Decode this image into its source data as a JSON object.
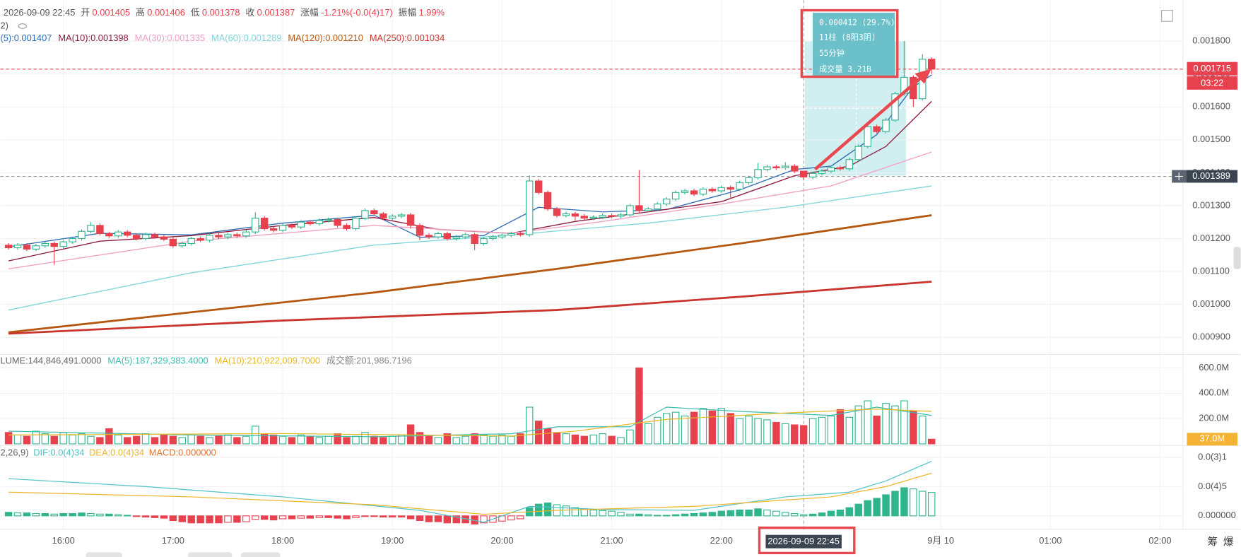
{
  "header": {
    "date": "2026-09-09 22:45",
    "items": [
      {
        "label": "开",
        "value": "0.001405"
      },
      {
        "label": "高",
        "value": "0.001406"
      },
      {
        "label": "低",
        "value": "0.001378"
      },
      {
        "label": "收",
        "value": "0.001387"
      },
      {
        "label": "涨幅",
        "value": "-1.21%(-0.0(4)17)"
      },
      {
        "label": "振幅",
        "value": "1.99%"
      }
    ],
    "line2": "2)"
  },
  "tooltip": [
    "0.000412 (29.7%)",
    "11柱 (8阳3阴)",
    "55分钟",
    "成交量 3.21B"
  ],
  "side_buttons": [
    "筹",
    "爆"
  ],
  "chart_data": {
    "type": "candlestick",
    "up_color": "#2fb58c",
    "down_color": "#e8414e",
    "grid": true,
    "xlim": [
      -0.9,
      128.5
    ],
    "xticks": [
      {
        "value": 6,
        "label": "16:00"
      },
      {
        "value": 18,
        "label": "17:00"
      },
      {
        "value": 30,
        "label": "18:00"
      },
      {
        "value": 42,
        "label": "19:00"
      },
      {
        "value": 54,
        "label": "20:00"
      },
      {
        "value": 66,
        "label": "21:00"
      },
      {
        "value": 78,
        "label": "22:00"
      },
      {
        "value": 102,
        "label": "9月 10"
      },
      {
        "value": 114,
        "label": "01:00"
      },
      {
        "value": 126,
        "label": "02:00"
      }
    ],
    "ylim": [
      0.000855,
      0.001925
    ],
    "yticks": [
      {
        "value": 0.0018,
        "label": "0.001800"
      },
      {
        "value": 0.0017,
        "label": "0.001700"
      },
      {
        "value": 0.0016,
        "label": "0.001600"
      },
      {
        "value": 0.0015,
        "label": "0.001500"
      },
      {
        "value": 0.0014,
        "label": "0.001400"
      },
      {
        "value": 0.0013,
        "label": "0.001300"
      },
      {
        "value": 0.0012,
        "label": "0.001200"
      },
      {
        "value": 0.0011,
        "label": "0.001100"
      },
      {
        "value": 0.001,
        "label": "0.001000"
      },
      {
        "value": 0.0009,
        "label": "0.000900"
      }
    ],
    "open": [
      0.00118,
      0.001172,
      0.00118,
      0.001168,
      0.001178,
      0.001185,
      0.001176,
      0.00119,
      0.0012,
      0.001222,
      0.00124,
      0.001215,
      0.001208,
      0.00122,
      0.00121,
      0.0012,
      0.001212,
      0.001205,
      0.001198,
      0.001178,
      0.001185,
      0.0012,
      0.001195,
      0.00121,
      0.001205,
      0.001212,
      0.001208,
      0.00122,
      0.001262,
      0.00123,
      0.001225,
      0.00124,
      0.001235,
      0.00125,
      0.001245,
      0.001255,
      0.001258,
      0.00124,
      0.00123,
      0.001262,
      0.001285,
      0.001275,
      0.001262,
      0.001268,
      0.001272,
      0.00124,
      0.00121,
      0.001205,
      0.001215,
      0.0012,
      0.001205,
      0.001212,
      0.001185,
      0.0012,
      0.001205,
      0.00121,
      0.001215,
      0.001212,
      0.001375,
      0.00134,
      0.00129,
      0.00127,
      0.001275,
      0.001268,
      0.001262,
      0.001265,
      0.00127,
      0.001268,
      0.001272,
      0.0013,
      0.001285,
      0.00129,
      0.001305,
      0.00132,
      0.00134,
      0.001345,
      0.001335,
      0.00135,
      0.001345,
      0.001355,
      0.00135,
      0.00137,
      0.001385,
      0.00141,
      0.001418,
      0.001415,
      0.00142,
      0.001405,
      0.001387,
      0.001398,
      0.001405,
      0.001415,
      0.001412,
      0.00144,
      0.00148,
      0.00154,
      0.001525,
      0.00156,
      0.00164,
      0.00169,
      0.001625,
      0.001745
    ],
    "high": [
      0.001186,
      0.001186,
      0.001186,
      0.001184,
      0.001191,
      0.001191,
      0.001196,
      0.001206,
      0.001228,
      0.00125,
      0.001246,
      0.001221,
      0.001226,
      0.001226,
      0.001216,
      0.001218,
      0.001218,
      0.001211,
      0.001204,
      0.001191,
      0.001206,
      0.001206,
      0.001216,
      0.001216,
      0.001218,
      0.001218,
      0.001226,
      0.00128,
      0.001268,
      0.001236,
      0.001246,
      0.001246,
      0.001256,
      0.001256,
      0.001261,
      0.001264,
      0.001264,
      0.001246,
      0.001268,
      0.001291,
      0.001291,
      0.001281,
      0.001274,
      0.001278,
      0.001278,
      0.001246,
      0.001216,
      0.001221,
      0.001221,
      0.001211,
      0.001218,
      0.001218,
      0.001206,
      0.001211,
      0.001216,
      0.001221,
      0.001221,
      0.001392,
      0.001381,
      0.001346,
      0.001296,
      0.001281,
      0.001281,
      0.001274,
      0.001271,
      0.001276,
      0.001276,
      0.001278,
      0.001306,
      0.001408,
      0.001296,
      0.001311,
      0.001326,
      0.001346,
      0.001351,
      0.001351,
      0.001356,
      0.001356,
      0.001361,
      0.001361,
      0.001376,
      0.001391,
      0.00143,
      0.001424,
      0.001424,
      0.001432,
      0.001426,
      0.001406,
      0.001404,
      0.001411,
      0.001421,
      0.001421,
      0.001446,
      0.001486,
      0.001546,
      0.001546,
      0.001566,
      0.001646,
      0.0018,
      0.001696,
      0.00176,
      0.001751
    ],
    "low": [
      0.001166,
      0.001166,
      0.001162,
      0.001162,
      0.001172,
      0.00112,
      0.00117,
      0.001184,
      0.001194,
      0.001216,
      0.001209,
      0.001202,
      0.001202,
      0.001204,
      0.001194,
      0.001194,
      0.001199,
      0.001192,
      0.001172,
      0.001172,
      0.001179,
      0.001189,
      0.001189,
      0.001199,
      0.001199,
      0.001202,
      0.001202,
      0.001214,
      0.001224,
      0.001219,
      0.001219,
      0.001229,
      0.001229,
      0.001239,
      0.001239,
      0.001249,
      0.001234,
      0.001224,
      0.001224,
      0.001256,
      0.001269,
      0.001256,
      0.001256,
      0.001262,
      0.00123,
      0.001195,
      0.001199,
      0.001199,
      0.001194,
      0.001194,
      0.001199,
      0.001165,
      0.001179,
      0.001194,
      0.001199,
      0.001204,
      0.001206,
      0.001206,
      0.001334,
      0.001284,
      0.001264,
      0.001264,
      0.001255,
      0.001256,
      0.001256,
      0.001259,
      0.001262,
      0.001262,
      0.001266,
      0.001279,
      0.001279,
      0.001284,
      0.001299,
      0.001314,
      0.001334,
      0.001329,
      0.001329,
      0.001339,
      0.001339,
      0.00132,
      0.001344,
      0.001364,
      0.001379,
      0.001404,
      0.001409,
      0.001409,
      0.001399,
      0.001378,
      0.001381,
      0.001392,
      0.001399,
      0.001406,
      0.001406,
      0.001434,
      0.001474,
      0.001519,
      0.001519,
      0.001554,
      0.001634,
      0.0016,
      0.001619,
      0.0017
    ],
    "close": [
      0.001172,
      0.00118,
      0.001168,
      0.001178,
      0.001185,
      0.001176,
      0.00119,
      0.0012,
      0.001222,
      0.00124,
      0.001215,
      0.001208,
      0.00122,
      0.00121,
      0.0012,
      0.001212,
      0.001205,
      0.001198,
      0.001178,
      0.001185,
      0.0012,
      0.001195,
      0.00121,
      0.001205,
      0.001212,
      0.001208,
      0.00122,
      0.001262,
      0.00123,
      0.001225,
      0.00124,
      0.001235,
      0.00125,
      0.001245,
      0.001255,
      0.001258,
      0.00124,
      0.00123,
      0.001262,
      0.001285,
      0.001275,
      0.001262,
      0.001268,
      0.001272,
      0.00124,
      0.00121,
      0.001205,
      0.001215,
      0.0012,
      0.001205,
      0.001212,
      0.001185,
      0.0012,
      0.001205,
      0.00121,
      0.001215,
      0.001212,
      0.001375,
      0.00134,
      0.00129,
      0.00127,
      0.001275,
      0.001268,
      0.001262,
      0.001265,
      0.00127,
      0.001268,
      0.001272,
      0.0013,
      0.001285,
      0.00129,
      0.001305,
      0.00132,
      0.00134,
      0.001345,
      0.001335,
      0.00135,
      0.001345,
      0.001355,
      0.00135,
      0.00137,
      0.001385,
      0.00141,
      0.001418,
      0.001415,
      0.00142,
      0.001405,
      0.001387,
      0.001398,
      0.001405,
      0.001415,
      0.001412,
      0.00144,
      0.00148,
      0.00154,
      0.001525,
      0.00156,
      0.00164,
      0.00169,
      0.001625,
      0.001745,
      0.001715
    ],
    "ma": [
      {
        "name": "(5):0.001407",
        "color": "#2f6db5",
        "x": [
          0,
          10,
          20,
          30,
          40,
          45,
          52,
          58,
          65,
          72,
          80,
          86,
          90,
          95,
          99,
          101
        ],
        "values": [
          0.001175,
          0.001216,
          0.001211,
          0.001247,
          0.001271,
          0.001204,
          0.001209,
          0.001295,
          0.001281,
          0.001288,
          0.001348,
          0.00141,
          0.00142,
          0.001516,
          0.001661,
          0.001697
        ]
      },
      {
        "name": "MA(10):0.001398",
        "color": "#8e1b3e",
        "x": [
          0,
          10,
          20,
          30,
          40,
          47,
          55,
          62,
          70,
          78,
          86,
          92,
          96,
          101
        ],
        "values": [
          0.001132,
          0.001192,
          0.001209,
          0.00124,
          0.001264,
          0.001228,
          0.001216,
          0.001252,
          0.001281,
          0.001312,
          0.001391,
          0.00142,
          0.00148,
          0.001617
        ]
      },
      {
        "name": "MA(30):0.001335",
        "color": "#f0a0c4",
        "x": [
          0,
          20,
          40,
          55,
          65,
          78,
          90,
          101
        ],
        "values": [
          0.001108,
          0.001192,
          0.00124,
          0.001216,
          0.001252,
          0.001305,
          0.00136,
          0.001463
        ]
      },
      {
        "name": "MA(60):0.001289",
        "color": "#7fd4dc",
        "x": [
          0,
          20,
          40,
          55,
          70,
          85,
          101
        ],
        "values": [
          0.000983,
          0.001096,
          0.00118,
          0.001211,
          0.001247,
          0.001295,
          0.00136
        ]
      },
      {
        "name": "MA(120):0.001210",
        "color": "#b5570e",
        "x": [
          0,
          20,
          40,
          60,
          80,
          101
        ],
        "values": [
          0.000915,
          0.000976,
          0.001036,
          0.001108,
          0.001185,
          0.001271
        ]
      },
      {
        "name": "MA(250):0.001034",
        "color": "#c9352d",
        "x": [
          0,
          30,
          60,
          80,
          101
        ],
        "values": [
          0.000911,
          0.000951,
          0.000983,
          0.001023,
          0.001069
        ]
      }
    ],
    "last": {
      "value": 0.001715,
      "label": "0.001715",
      "countdown": "03:22"
    },
    "crosshair": {
      "x": 87,
      "x_label": "2026-09-09 22:45",
      "y": 0.001389,
      "y_label": "0.001389"
    },
    "volume": {
      "label": "LUME:144,846,491.0000",
      "turnover": "成交额:201,986.7196",
      "ylim": [
        0,
        662500000
      ],
      "yticks": [
        {
          "value": 600000000,
          "label": "600.0M"
        },
        {
          "value": 400000000,
          "label": "400.0M"
        },
        {
          "value": 200000000,
          "label": "200.0M"
        }
      ],
      "values": [
        90000000,
        70000000,
        60000000,
        100000000,
        80000000,
        60000000,
        90000000,
        70000000,
        80000000,
        60000000,
        50000000,
        120000000,
        70000000,
        50000000,
        60000000,
        80000000,
        50000000,
        70000000,
        60000000,
        50000000,
        70000000,
        60000000,
        50000000,
        60000000,
        70000000,
        50000000,
        60000000,
        140000000,
        80000000,
        70000000,
        60000000,
        50000000,
        70000000,
        60000000,
        50000000,
        60000000,
        80000000,
        50000000,
        60000000,
        90000000,
        60000000,
        50000000,
        60000000,
        70000000,
        150000000,
        90000000,
        60000000,
        50000000,
        80000000,
        50000000,
        60000000,
        80000000,
        70000000,
        60000000,
        70000000,
        60000000,
        80000000,
        290000000,
        180000000,
        120000000,
        90000000,
        80000000,
        70000000,
        60000000,
        70000000,
        80000000,
        60000000,
        50000000,
        110000000,
        600000000,
        160000000,
        210000000,
        240000000,
        250000000,
        220000000,
        250000000,
        280000000,
        260000000,
        280000000,
        240000000,
        200000000,
        220000000,
        200000000,
        190000000,
        170000000,
        160000000,
        150000000,
        144846491,
        200000000,
        210000000,
        220000000,
        270000000,
        210000000,
        300000000,
        340000000,
        220000000,
        320000000,
        300000000,
        340000000,
        260000000,
        220000000,
        37000000
      ],
      "current_label": "37.0M",
      "series": [
        {
          "name": "MA(5):187,329,383.4000",
          "color": "#3dbdb0",
          "x": [
            0,
            20,
            40,
            55,
            60,
            68,
            72,
            80,
            90,
            95,
            101
          ],
          "values": [
            100000000,
            70000000,
            56000000,
            80000000,
            135000000,
            135000000,
            290000000,
            256000000,
            225000000,
            290000000,
            225000000
          ]
        },
        {
          "name": "MA(10):210,922,009.7000",
          "color": "#e8b923",
          "x": [
            0,
            30,
            55,
            62,
            72,
            85,
            95,
            101
          ],
          "values": [
            70000000,
            81000000,
            62000000,
            100000000,
            194000000,
            244000000,
            275000000,
            256000000
          ]
        }
      ]
    },
    "macd": {
      "label": "2,26,9)",
      "ylim": [
        -2.16e-05,
        0.0001175
      ],
      "yticks": [
        {
          "value": 0.0001,
          "label": "0.0(3)1"
        },
        {
          "value": 5e-05,
          "label": "0.0(4)5"
        },
        {
          "value": 0,
          "label": "0.000000"
        }
      ],
      "hist_name": "MACD:0.000000",
      "hist_color": "#e8722c",
      "values": [
        6e-06,
        5e-06,
        5e-06,
        4e-06,
        4e-06,
        3e-06,
        4e-06,
        4e-06,
        5e-06,
        4e-06,
        3e-06,
        3e-06,
        2e-06,
        1e-06,
        -1e-06,
        -2e-06,
        -3e-06,
        -4e-06,
        -8e-06,
        -1e-05,
        -1.2e-05,
        -1.2e-05,
        -1.2e-05,
        -1.2e-05,
        -1.1e-05,
        -1.1e-05,
        -1e-05,
        -6e-06,
        -6e-06,
        -7e-06,
        -5e-06,
        -5e-06,
        -4e-06,
        -4e-06,
        -3e-06,
        -3e-06,
        -4e-06,
        -5e-06,
        -3e-06,
        -1e-06,
        -1e-06,
        -2e-06,
        -2e-06,
        -2e-06,
        -5e-06,
        -8e-06,
        -1e-05,
        -1e-05,
        -1.2e-05,
        -1.2e-05,
        -1.2e-05,
        -1.4e-05,
        -1.2e-05,
        -1.1e-05,
        -9e-06,
        -7e-06,
        -5e-06,
        1.4e-05,
        2e-05,
        2.2e-05,
        1.9e-05,
        1.7e-05,
        1.4e-05,
        1.2e-05,
        1e-05,
        9e-06,
        8e-06,
        6e-06,
        3e-06,
        3e-06,
        2e-06,
        1e-06,
        1e-06,
        2e-06,
        3e-06,
        4e-06,
        5e-06,
        6e-06,
        8e-06,
        9e-06,
        1e-05,
        1e-05,
        1.2e-05,
        1e-05,
        8e-06,
        6e-06,
        4e-06,
        2e-06,
        3e-06,
        5e-06,
        8e-06,
        1e-05,
        1.4e-05,
        2e-05,
        2.6e-05,
        3e-05,
        3.6e-05,
        4.2e-05,
        4.8e-05,
        4.6e-05,
        4.2e-05,
        4e-05
      ],
      "series": [
        {
          "name": "DIF:0.0(4)34",
          "color": "#4fc3c8",
          "x": [
            0,
            15,
            30,
            45,
            52,
            57,
            65,
            75,
            85,
            92,
            96,
            101
          ],
          "values": [
            6.35e-05,
            5e-05,
            3.24e-05,
            9.5e-06,
            -1.08e-05,
            1.62e-05,
            1.08e-05,
            9.5e-06,
            3.24e-05,
            4.05e-05,
            5.95e-05,
            9.32e-05
          ]
        },
        {
          "name": "DEA:0.0(4)34",
          "color": "#f0b429",
          "x": [
            0,
            20,
            40,
            52,
            60,
            75,
            90,
            96,
            101
          ],
          "values": [
            4.05e-05,
            3.24e-05,
            1.89e-05,
            2.7e-06,
            9.5e-06,
            1.62e-05,
            3.24e-05,
            5e-05,
            7.3e-05
          ]
        }
      ]
    }
  }
}
